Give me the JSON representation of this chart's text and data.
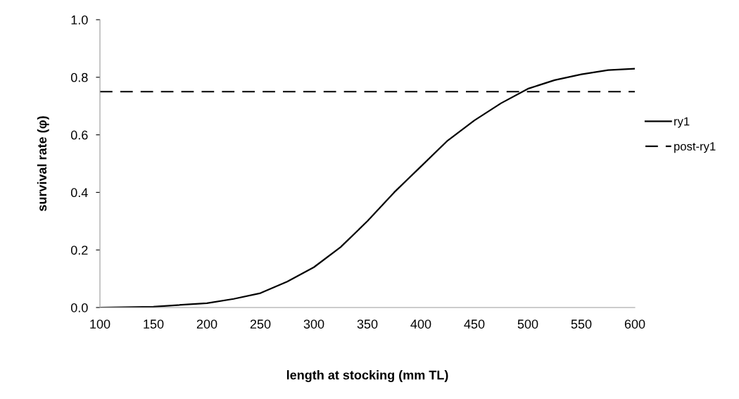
{
  "chart_data": {
    "type": "line",
    "xlabel": "length at stocking (mm TL)",
    "ylabel": "survival rate (φ)",
    "series": [
      {
        "name": "ry1",
        "color": "#000000",
        "line_style": "solid",
        "x": [
          100,
          150,
          200,
          225,
          250,
          275,
          300,
          325,
          350,
          375,
          400,
          425,
          450,
          475,
          500,
          525,
          550,
          575,
          600
        ],
        "values": [
          0.0,
          0.003,
          0.015,
          0.03,
          0.05,
          0.09,
          0.14,
          0.21,
          0.3,
          0.4,
          0.49,
          0.58,
          0.65,
          0.71,
          0.76,
          0.79,
          0.81,
          0.825,
          0.83
        ]
      },
      {
        "name": "post-ry1",
        "color": "#000000",
        "line_style": "dashed",
        "x": [
          100,
          600
        ],
        "values": [
          0.75,
          0.75
        ]
      }
    ],
    "xlim": [
      100,
      600
    ],
    "xticks": [
      100,
      150,
      200,
      250,
      300,
      350,
      400,
      450,
      500,
      550,
      600
    ],
    "ylim": [
      0,
      1
    ],
    "yticks": [
      {
        "value": 0,
        "label": "0.0"
      },
      {
        "value": 0.2,
        "label": "0.2"
      },
      {
        "value": 0.4,
        "label": "0.4"
      },
      {
        "value": 0.6,
        "label": "0.6"
      },
      {
        "value": 0.8,
        "label": "0.8"
      },
      {
        "value": 1,
        "label": "1.0"
      }
    ],
    "grid": false,
    "legend": "right",
    "marker": "none"
  }
}
